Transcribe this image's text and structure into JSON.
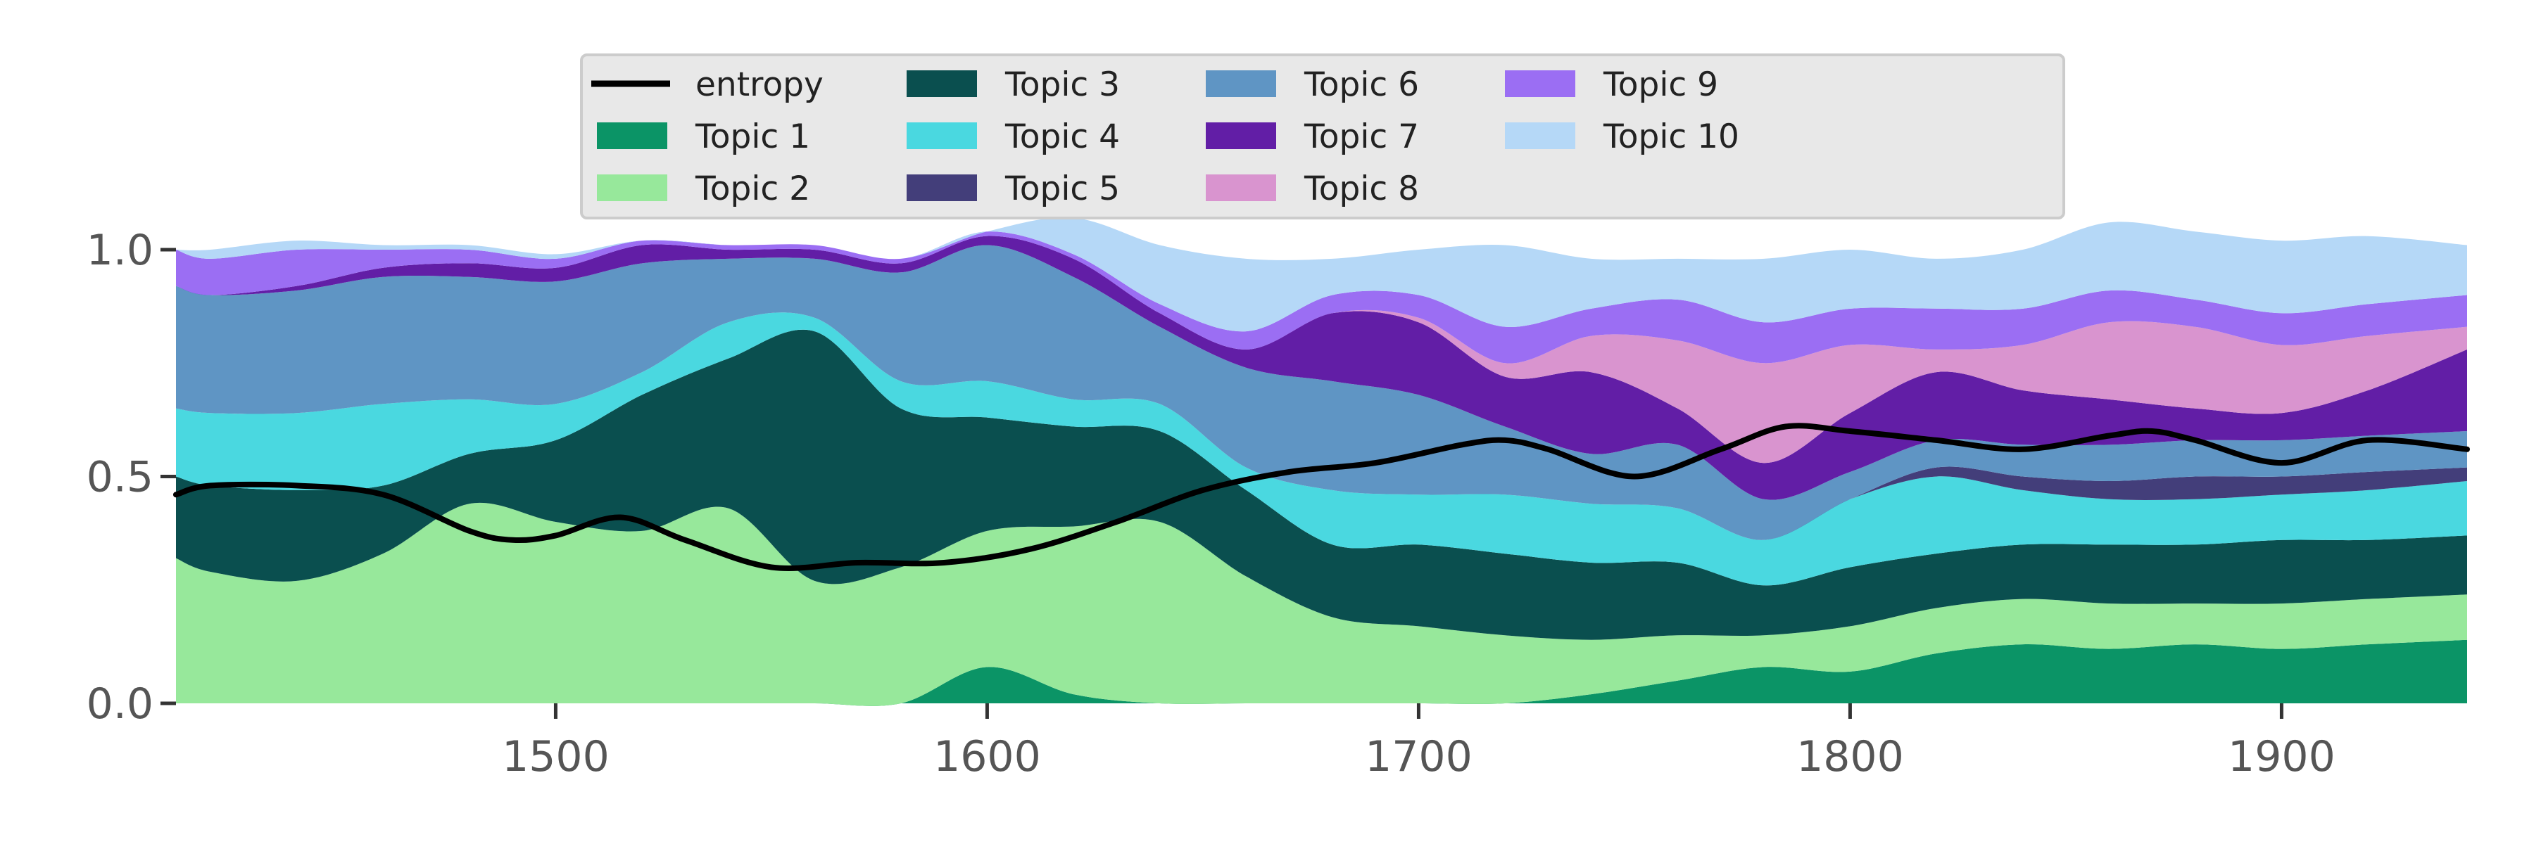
{
  "chart_data": {
    "type": "area",
    "stacked": true,
    "xlim": [
      1412,
      1943
    ],
    "ylim": [
      0,
      1
    ],
    "x_ticks": [
      1500,
      1600,
      1700,
      1800,
      1900
    ],
    "y_ticks": [
      0.0,
      0.5,
      1.0
    ],
    "x_tick_labels": [
      "1500",
      "1600",
      "1700",
      "1800",
      "1900"
    ],
    "y_tick_labels": [
      "0.0",
      "0.5",
      "1.0"
    ],
    "legend_placement": "top-center",
    "x": [
      1412,
      1420,
      1440,
      1460,
      1480,
      1500,
      1520,
      1540,
      1560,
      1580,
      1600,
      1620,
      1640,
      1660,
      1680,
      1700,
      1720,
      1740,
      1760,
      1780,
      1800,
      1820,
      1840,
      1860,
      1880,
      1900,
      1920,
      1943
    ],
    "series": [
      {
        "name": "Topic 1",
        "color": "#0b9466",
        "values": [
          0,
          0,
          0,
          0,
          0,
          0,
          0,
          0,
          0,
          0,
          0.08,
          0.02,
          0,
          0,
          0,
          0,
          0,
          0.02,
          0.05,
          0.08,
          0.07,
          0.11,
          0.13,
          0.12,
          0.13,
          0.12,
          0.13,
          0.14
        ]
      },
      {
        "name": "Topic 2",
        "color": "#97e89b",
        "values": [
          0.32,
          0.29,
          0.27,
          0.33,
          0.44,
          0.4,
          0.38,
          0.43,
          0.27,
          0.3,
          0.3,
          0.37,
          0.4,
          0.28,
          0.19,
          0.17,
          0.15,
          0.12,
          0.1,
          0.07,
          0.1,
          0.1,
          0.1,
          0.1,
          0.09,
          0.1,
          0.1,
          0.1
        ]
      },
      {
        "name": "Topic 3",
        "color": "#0a4f4f",
        "values": [
          0.18,
          0.19,
          0.2,
          0.15,
          0.11,
          0.18,
          0.3,
          0.33,
          0.55,
          0.35,
          0.25,
          0.22,
          0.2,
          0.19,
          0.16,
          0.18,
          0.18,
          0.17,
          0.16,
          0.11,
          0.13,
          0.12,
          0.12,
          0.13,
          0.13,
          0.14,
          0.13,
          0.13
        ]
      },
      {
        "name": "Topic 4",
        "color": "#4ad8e0",
        "values": [
          0.15,
          0.16,
          0.17,
          0.18,
          0.12,
          0.08,
          0.05,
          0.08,
          0.03,
          0.06,
          0.08,
          0.06,
          0.06,
          0.05,
          0.12,
          0.11,
          0.13,
          0.13,
          0.12,
          0.1,
          0.15,
          0.17,
          0.12,
          0.1,
          0.1,
          0.1,
          0.11,
          0.12
        ]
      },
      {
        "name": "Topic 5",
        "color": "#433e7a",
        "values": [
          0,
          0,
          0,
          0,
          0,
          0,
          0,
          0,
          0,
          0,
          0,
          0,
          0,
          0,
          0,
          0,
          0,
          0,
          0,
          0,
          0,
          0.02,
          0.03,
          0.04,
          0.05,
          0.04,
          0.04,
          0.03
        ]
      },
      {
        "name": "Topic 6",
        "color": "#5f95c4",
        "values": [
          0.27,
          0.26,
          0.27,
          0.28,
          0.27,
          0.27,
          0.24,
          0.14,
          0.13,
          0.24,
          0.3,
          0.27,
          0.17,
          0.22,
          0.24,
          0.22,
          0.15,
          0.11,
          0.14,
          0.09,
          0.06,
          0.06,
          0.07,
          0.08,
          0.08,
          0.08,
          0.08,
          0.08
        ]
      },
      {
        "name": "Topic 7",
        "color": "#621ea6",
        "values": [
          0,
          0,
          0.01,
          0.02,
          0.03,
          0.03,
          0.04,
          0.02,
          0.02,
          0.02,
          0.02,
          0.04,
          0.03,
          0.04,
          0.15,
          0.16,
          0.11,
          0.18,
          0.08,
          0.08,
          0.13,
          0.15,
          0.12,
          0.1,
          0.07,
          0.06,
          0.1,
          0.18
        ]
      },
      {
        "name": "Topic 8",
        "color": "#d994cf",
        "values": [
          0,
          0,
          0,
          0,
          0,
          0,
          0,
          0,
          0,
          0,
          0,
          0,
          0,
          0,
          0,
          0.01,
          0.03,
          0.08,
          0.15,
          0.22,
          0.15,
          0.05,
          0.1,
          0.17,
          0.18,
          0.15,
          0.12,
          0.05
        ]
      },
      {
        "name": "Topic 9",
        "color": "#9b6ef3",
        "values": [
          0.08,
          0.08,
          0.08,
          0.04,
          0.03,
          0.02,
          0.01,
          0.01,
          0.01,
          0.01,
          0.01,
          0.01,
          0.02,
          0.04,
          0.04,
          0.05,
          0.08,
          0.06,
          0.09,
          0.09,
          0.08,
          0.09,
          0.08,
          0.07,
          0.06,
          0.07,
          0.07,
          0.07
        ]
      },
      {
        "name": "Topic 10",
        "color": "#b5d8f7",
        "values": [
          0,
          0.02,
          0.02,
          0.01,
          0.01,
          0.01,
          0,
          0,
          0,
          0,
          0,
          0.08,
          0.13,
          0.16,
          0.08,
          0.1,
          0.18,
          0.11,
          0.09,
          0.14,
          0.13,
          0.11,
          0.13,
          0.15,
          0.15,
          0.16,
          0.15,
          0.11
        ]
      }
    ],
    "line": {
      "name": "entropy",
      "color": "#000000",
      "x": [
        1412,
        1420,
        1440,
        1460,
        1480,
        1490,
        1500,
        1515,
        1530,
        1550,
        1570,
        1590,
        1610,
        1630,
        1650,
        1670,
        1690,
        1710,
        1720,
        1730,
        1750,
        1770,
        1785,
        1800,
        1820,
        1840,
        1860,
        1870,
        1880,
        1900,
        1920,
        1943
      ],
      "values": [
        0.46,
        0.48,
        0.48,
        0.46,
        0.38,
        0.36,
        0.37,
        0.41,
        0.36,
        0.3,
        0.31,
        0.31,
        0.34,
        0.4,
        0.47,
        0.51,
        0.53,
        0.57,
        0.58,
        0.56,
        0.5,
        0.56,
        0.61,
        0.6,
        0.58,
        0.56,
        0.59,
        0.6,
        0.58,
        0.53,
        0.58,
        0.56
      ]
    },
    "legend_order": [
      "entropy",
      "Topic 1",
      "Topic 2",
      "Topic 3",
      "Topic 4",
      "Topic 5",
      "Topic 6",
      "Topic 7",
      "Topic 8",
      "Topic 9",
      "Topic 10"
    ]
  }
}
